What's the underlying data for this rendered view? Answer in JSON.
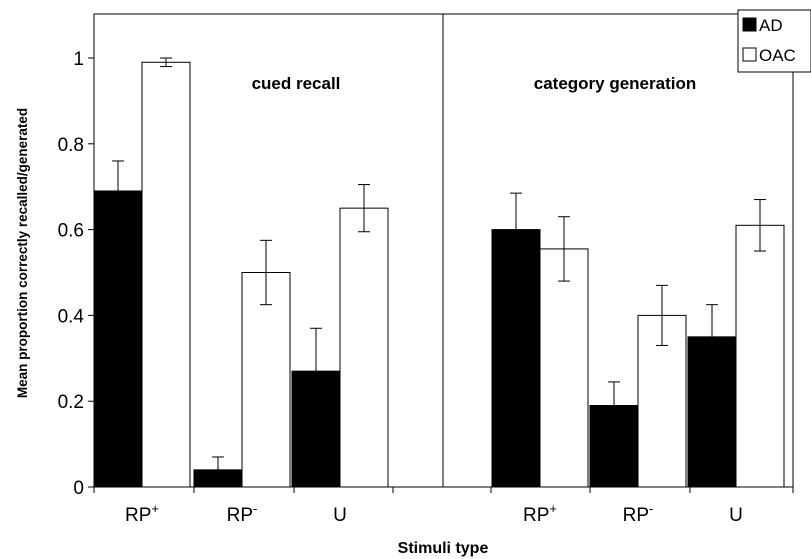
{
  "chart_data": {
    "type": "bar",
    "xlabel": "Stimuli  type",
    "ylabel": "Mean proportion correctly recalled/generated",
    "ylim": [
      0,
      1.0
    ],
    "yticks": [
      "0",
      "0.2",
      "0.4",
      "0.6",
      "0.8",
      "1"
    ],
    "grid": false,
    "legend_position": "top-right",
    "panels": [
      {
        "title": "cued recall",
        "categories": [
          {
            "base": "RP",
            "sup": "+"
          },
          {
            "base": "RP",
            "sup": "-"
          },
          {
            "base": "U",
            "sup": ""
          }
        ],
        "series": [
          {
            "name": "AD",
            "values": [
              0.69,
              0.04,
              0.27
            ],
            "errors": [
              0.07,
              0.03,
              0.1
            ],
            "color": "#000000"
          },
          {
            "name": "OAC",
            "values": [
              0.99,
              0.5,
              0.65
            ],
            "errors": [
              0.01,
              0.075,
              0.055
            ],
            "color": "#ffffff"
          }
        ]
      },
      {
        "title": "category generation",
        "categories": [
          {
            "base": "RP",
            "sup": "+"
          },
          {
            "base": "RP",
            "sup": "-"
          },
          {
            "base": "U",
            "sup": ""
          }
        ],
        "series": [
          {
            "name": "AD",
            "values": [
              0.6,
              0.19,
              0.35
            ],
            "errors": [
              0.085,
              0.055,
              0.075
            ],
            "color": "#000000"
          },
          {
            "name": "OAC",
            "values": [
              0.555,
              0.4,
              0.61
            ],
            "errors": [
              0.075,
              0.07,
              0.06
            ],
            "color": "#ffffff"
          }
        ]
      }
    ],
    "legend": [
      {
        "name": "AD",
        "color": "#000000"
      },
      {
        "name": "OAC",
        "color": "#ffffff"
      }
    ]
  }
}
